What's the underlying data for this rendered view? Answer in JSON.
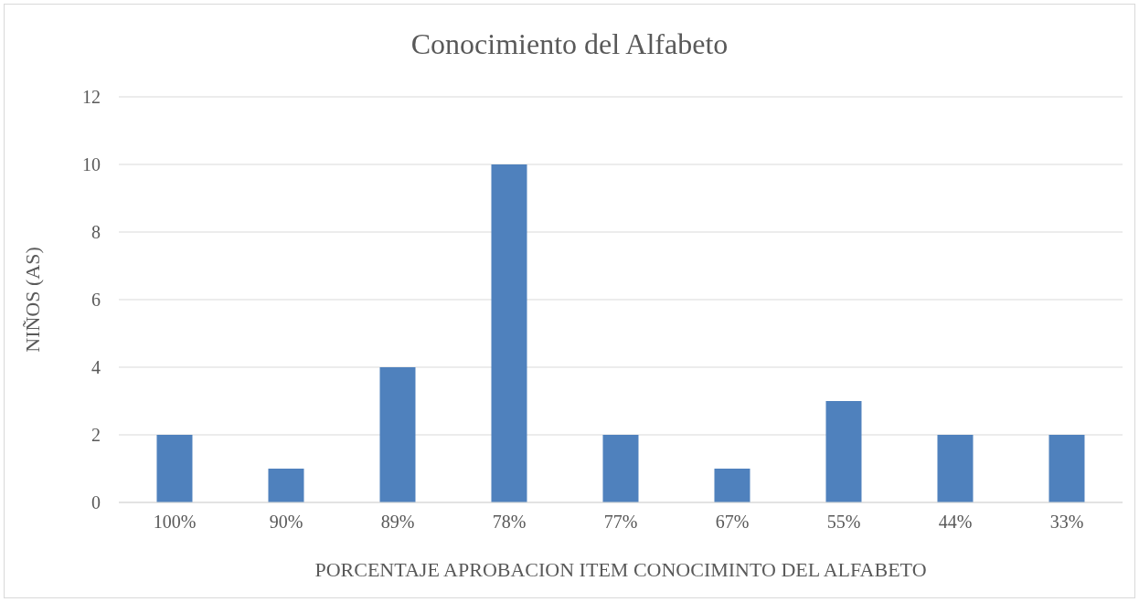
{
  "chart_data": {
    "type": "bar",
    "title": "Conocimiento del Alfabeto",
    "xlabel": "PORCENTAJE APROBACION ITEM CONOCIMINTO DEL ALFABETO",
    "ylabel": "NIÑOS (AS)",
    "categories": [
      "100%",
      "90%",
      "89%",
      "78%",
      "77%",
      "67%",
      "55%",
      "44%",
      "33%"
    ],
    "values": [
      2,
      1,
      4,
      10,
      2,
      1,
      3,
      2,
      2
    ],
    "color": "#4f81bd",
    "ylim": [
      0,
      12
    ],
    "yticks": [
      0,
      2,
      4,
      6,
      8,
      10,
      12
    ],
    "grid": "y",
    "legend": false
  }
}
